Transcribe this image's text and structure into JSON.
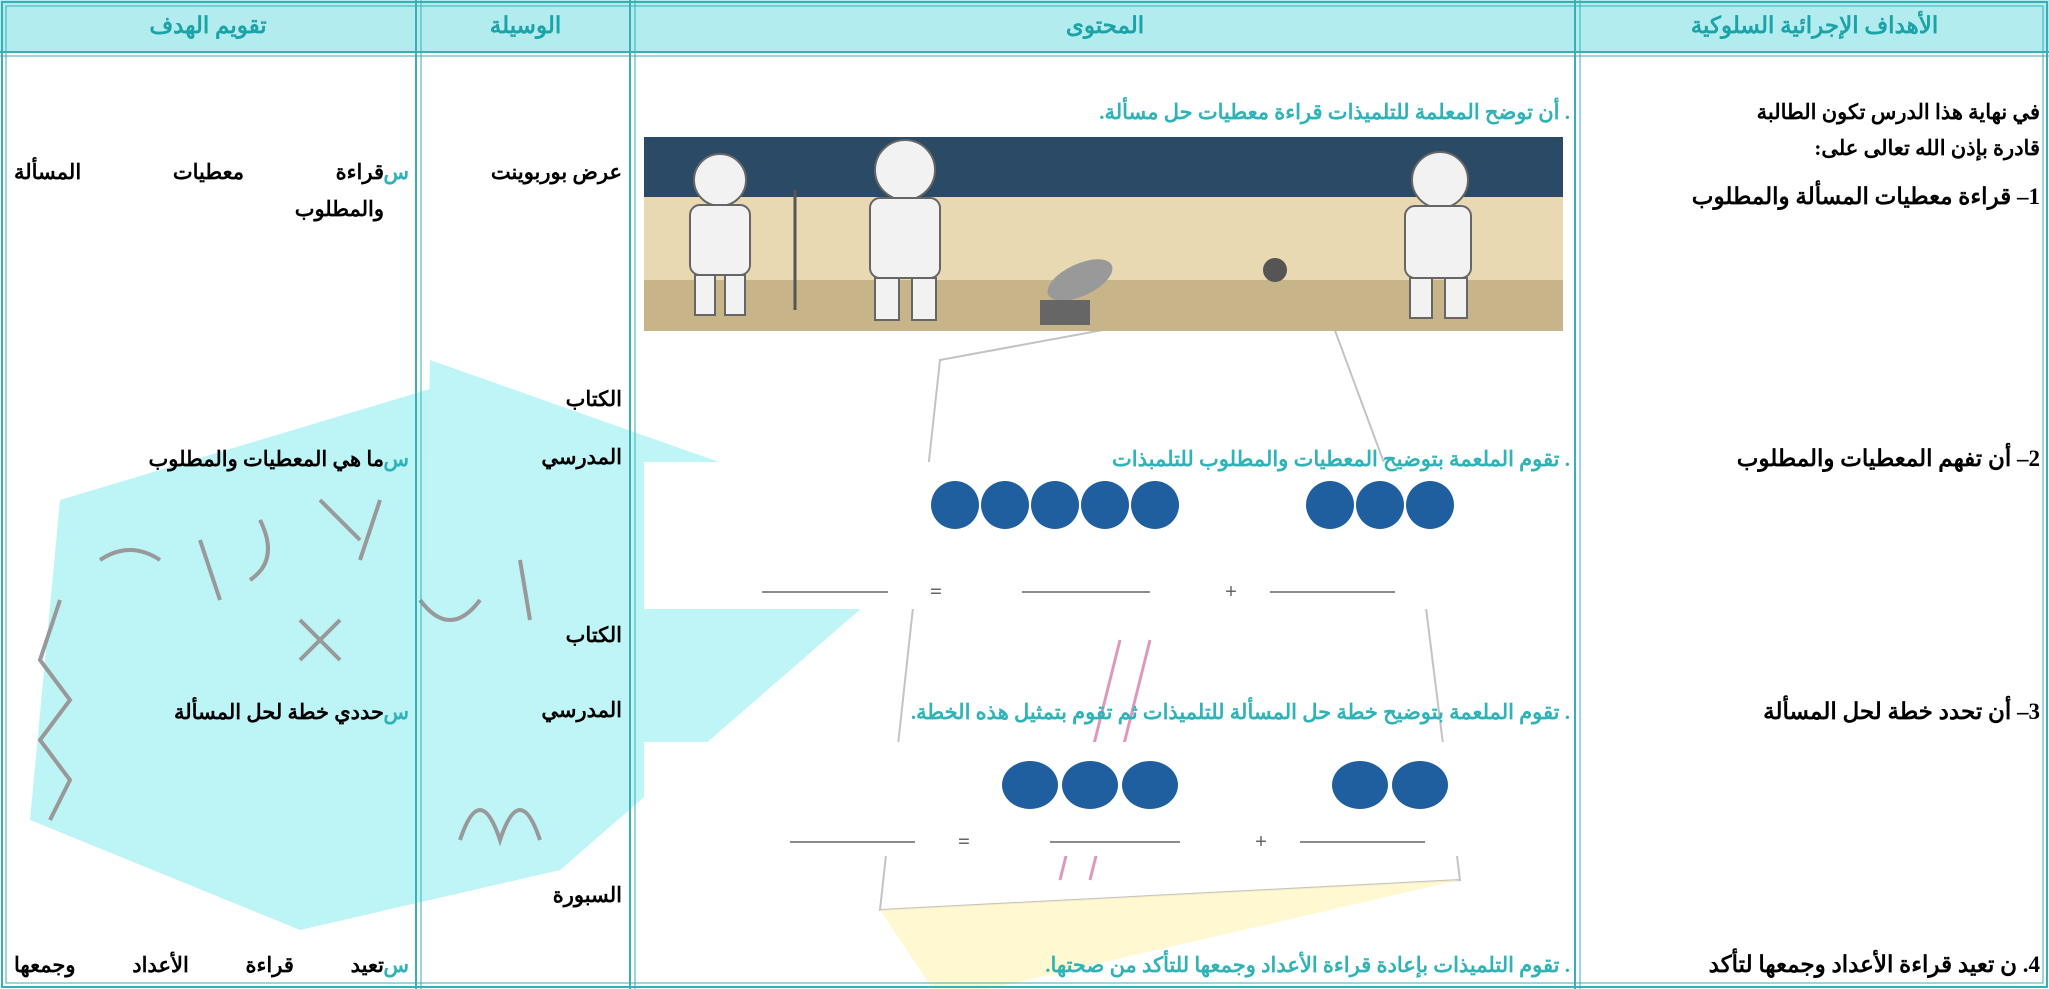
{
  "header": {
    "columns": [
      "الأهداف الإجرائية السلوكية",
      "المحتوى",
      "الوسيلة",
      "تقويم الهدف"
    ]
  },
  "rows": [
    {
      "objective": [
        "في نهاية هذا الدرس تكون الطالبة",
        "قادرة بإذن الله تعالى على:",
        "1– قراءة معطيات المسألة والمطلوب"
      ],
      "content": ". أن توضح المعلمة للتلميذات قراءة معطيات حل مسألة.",
      "tool": [
        "عرض بوربوينت"
      ],
      "evaluation": {
        "marker": "س",
        "lines": [
          "قراءة معطيات المسألة",
          "والمطلوب"
        ]
      }
    },
    {
      "objective": [
        "2– أن تفهم المعطيات والمطلوب"
      ],
      "content": ". تقوم الملعمة بتوضيح المعطيات والمطلوب للتلمبذات",
      "tool": [
        "الكتاب",
        "المدرسي"
      ],
      "evaluation": {
        "marker": "س",
        "lines": [
          "ما هي المعطيات والمطلوب"
        ]
      }
    },
    {
      "objective": [
        "3– أن تحدد خطة لحل المسألة"
      ],
      "content": ". تقوم الملعمة بتوضيح خطة حل المسألة للتلميذات ثم تقوم بتمثيل هذه الخطة.",
      "tool": [
        "الكتاب",
        "المدرسي"
      ],
      "evaluation": {
        "marker": "س",
        "lines": [
          "حددي خطة لحل المسألة"
        ]
      }
    },
    {
      "objective": [
        "4. ن تعيد قراءة الأعداد وجمعها لتأكد"
      ],
      "content": ". تقوم التلميذات بإعادة قراءة الأعداد وجمعها للتأكد من صحتها.",
      "tool": [
        "السبورة"
      ],
      "evaluation": {
        "marker": "س",
        "lines": [
          "تعيد قراءة الأعداد وجمعها"
        ]
      }
    }
  ],
  "illustrations": [
    {
      "operators": [
        "=",
        "+"
      ]
    },
    {
      "operators": [
        "=",
        "+"
      ]
    }
  ]
}
